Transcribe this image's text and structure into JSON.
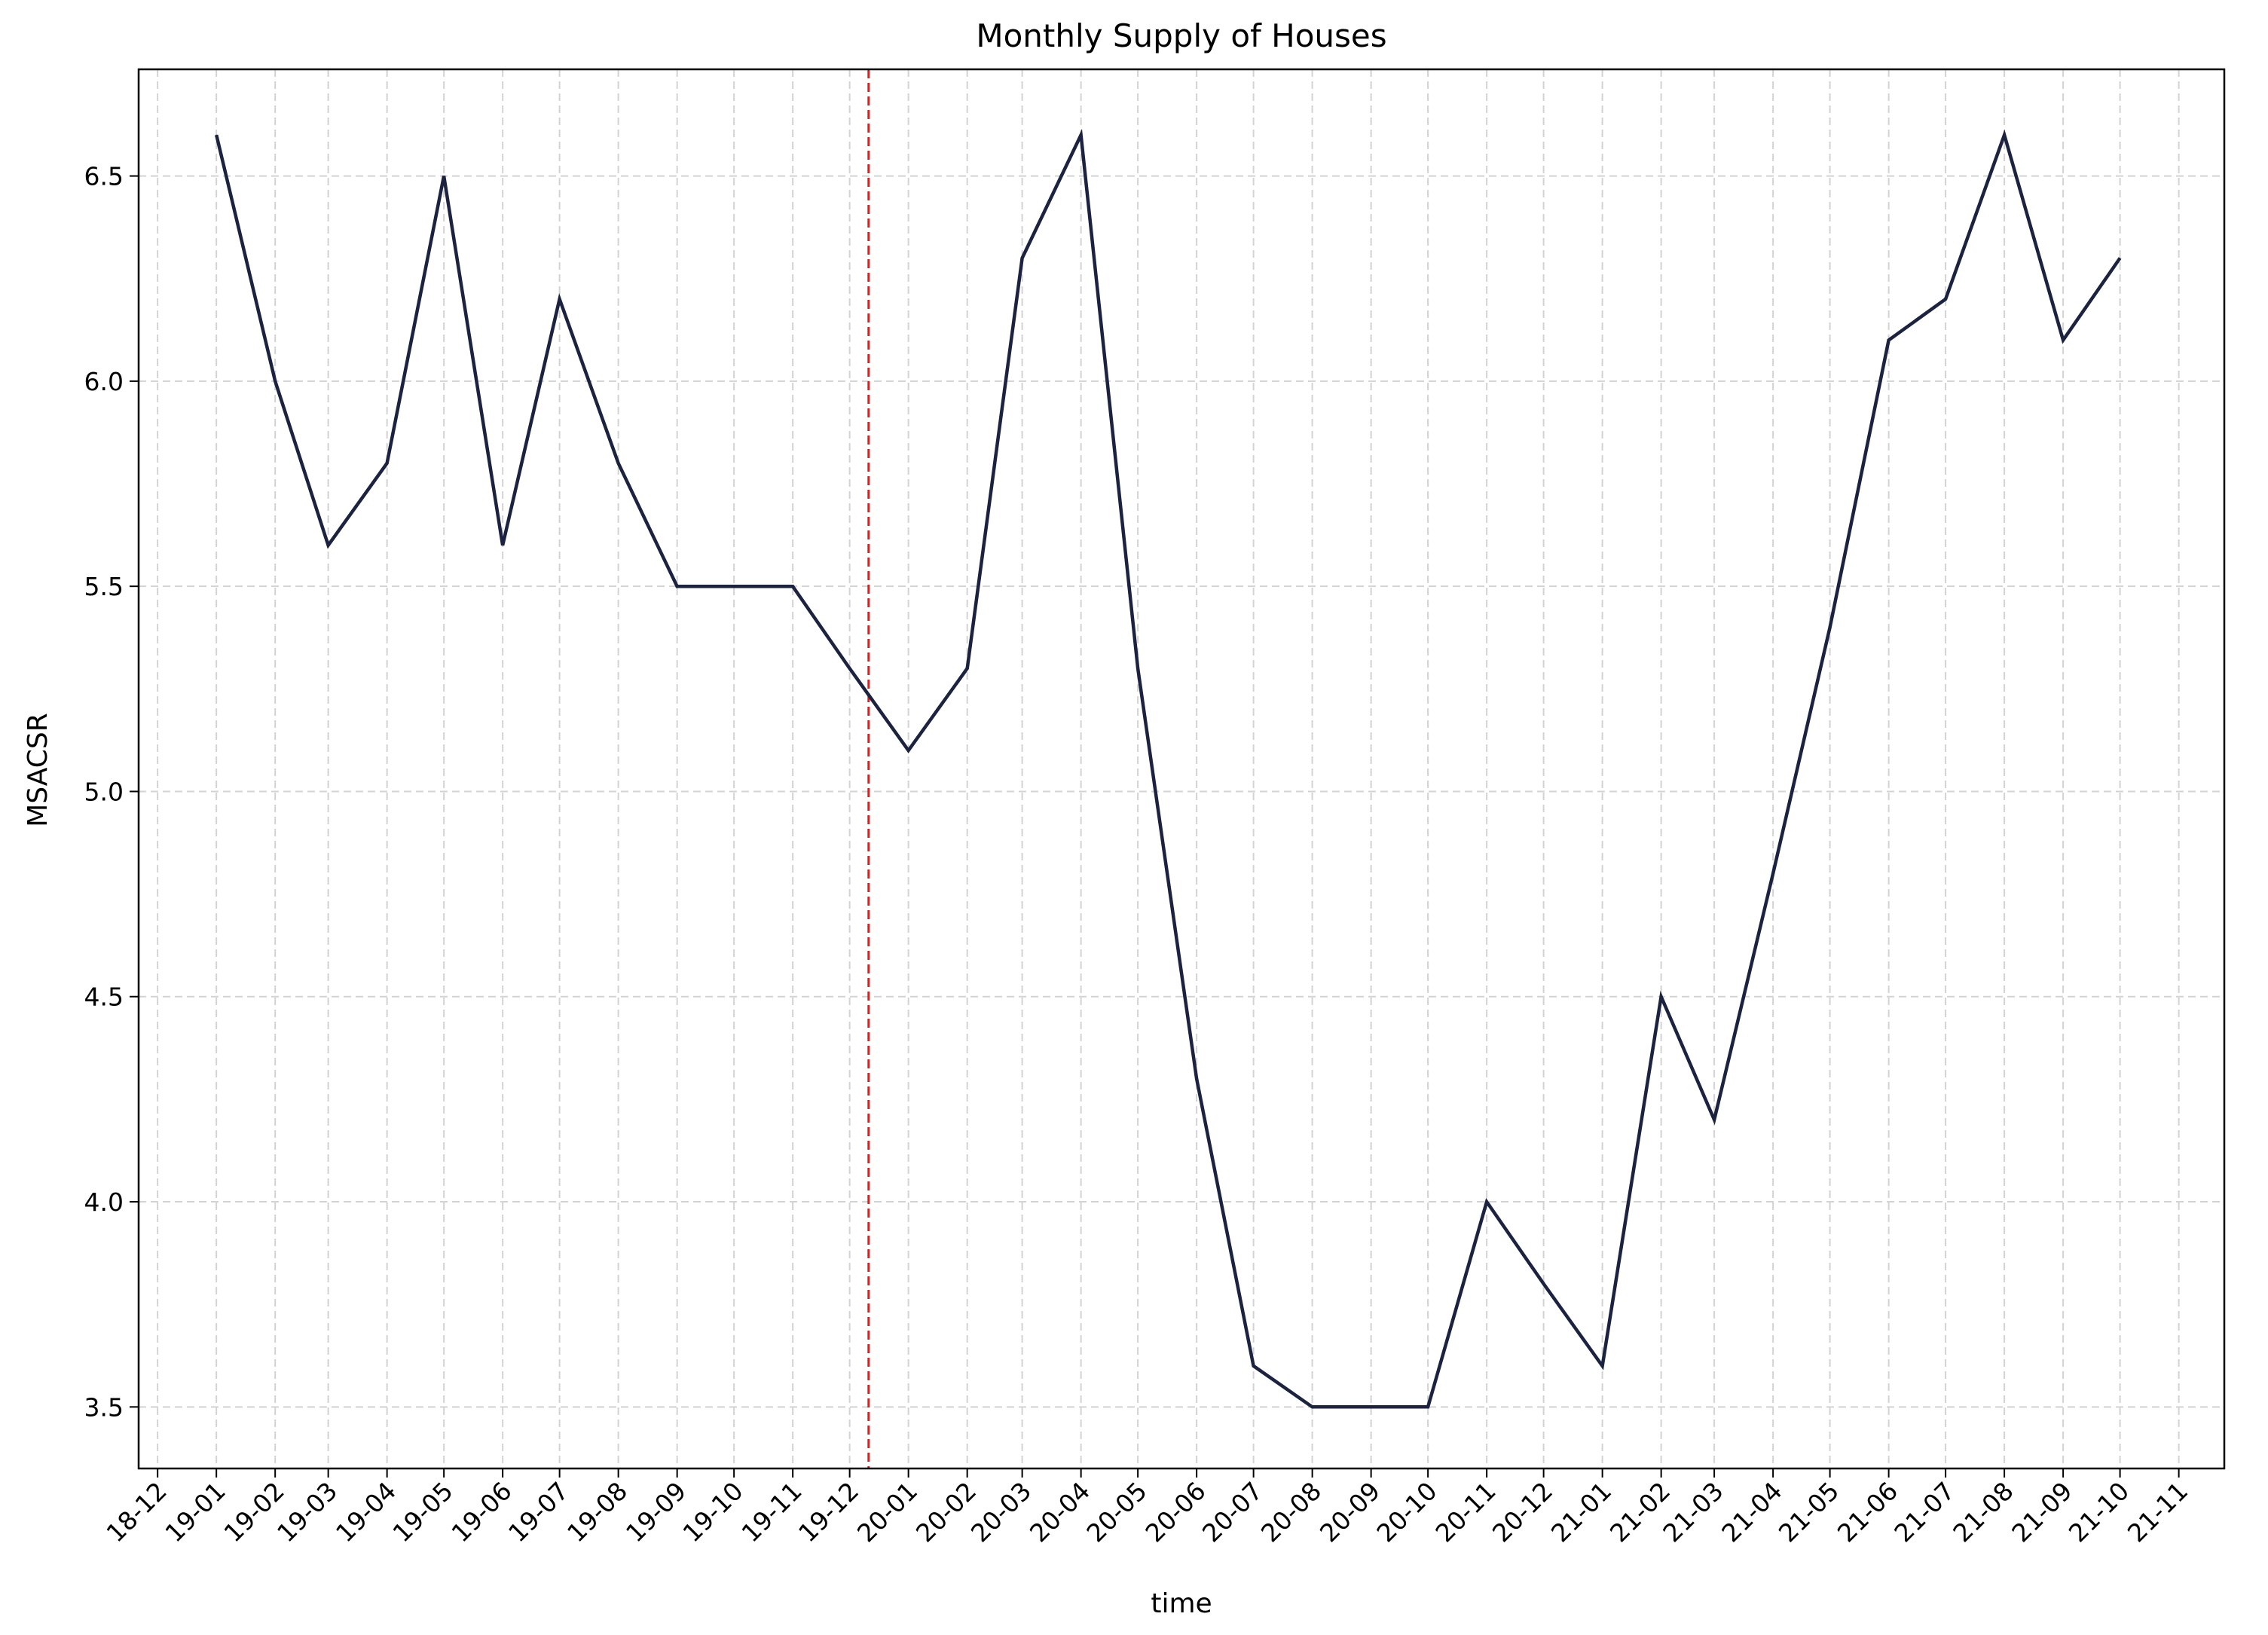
{
  "chart_data": {
    "type": "line",
    "title": "Monthly Supply of Houses",
    "xlabel": "time",
    "ylabel": "MSACSR",
    "x_tick_labels": [
      "18-12",
      "19-01",
      "19-02",
      "19-03",
      "19-04",
      "19-05",
      "19-06",
      "19-07",
      "19-08",
      "19-09",
      "19-10",
      "19-11",
      "19-12",
      "20-01",
      "20-02",
      "20-03",
      "20-04",
      "20-05",
      "20-06",
      "20-07",
      "20-08",
      "20-09",
      "20-10",
      "20-11",
      "20-12",
      "21-01",
      "21-02",
      "21-03",
      "21-04",
      "21-05",
      "21-06",
      "21-07",
      "21-08",
      "21-09",
      "21-10",
      "21-11"
    ],
    "y_ticks": [
      3.5,
      4.0,
      4.5,
      5.0,
      5.5,
      6.0,
      6.5
    ],
    "y_tick_labels": [
      "3.5",
      "4.0",
      "4.5",
      "5.0",
      "5.5",
      "6.0",
      "6.5"
    ],
    "ylim": [
      3.35,
      6.76
    ],
    "xlim": [
      "2018-11-21",
      "2021-11-25"
    ],
    "grid": true,
    "series": [
      {
        "color": "#1b2340",
        "x": [
          "2019-01-01",
          "2019-02-01",
          "2019-03-01",
          "2019-04-01",
          "2019-05-01",
          "2019-06-01",
          "2019-07-01",
          "2019-08-01",
          "2019-09-01",
          "2019-10-01",
          "2019-11-01",
          "2019-12-01",
          "2020-01-01",
          "2020-02-01",
          "2020-03-01",
          "2020-04-01",
          "2020-05-01",
          "2020-06-01",
          "2020-07-01",
          "2020-08-01",
          "2020-09-01",
          "2020-10-01",
          "2020-11-01",
          "2020-12-01",
          "2021-01-01",
          "2021-02-01",
          "2021-03-01",
          "2021-04-01",
          "2021-05-01",
          "2021-06-01",
          "2021-07-01",
          "2021-08-01",
          "2021-09-01",
          "2021-10-01"
        ],
        "values": [
          6.6,
          6.0,
          5.6,
          5.8,
          6.5,
          5.6,
          6.2,
          5.8,
          5.5,
          5.5,
          5.5,
          5.3,
          5.1,
          5.3,
          6.3,
          6.6,
          5.3,
          4.3,
          3.6,
          3.5,
          3.5,
          3.5,
          4.0,
          3.8,
          3.6,
          4.5,
          4.2,
          4.8,
          5.4,
          6.1,
          6.2,
          6.6,
          6.1,
          6.3
        ]
      }
    ],
    "vertical_line": {
      "x": "2019-12-11",
      "color": "#e31a1c",
      "style": "dashed"
    }
  }
}
